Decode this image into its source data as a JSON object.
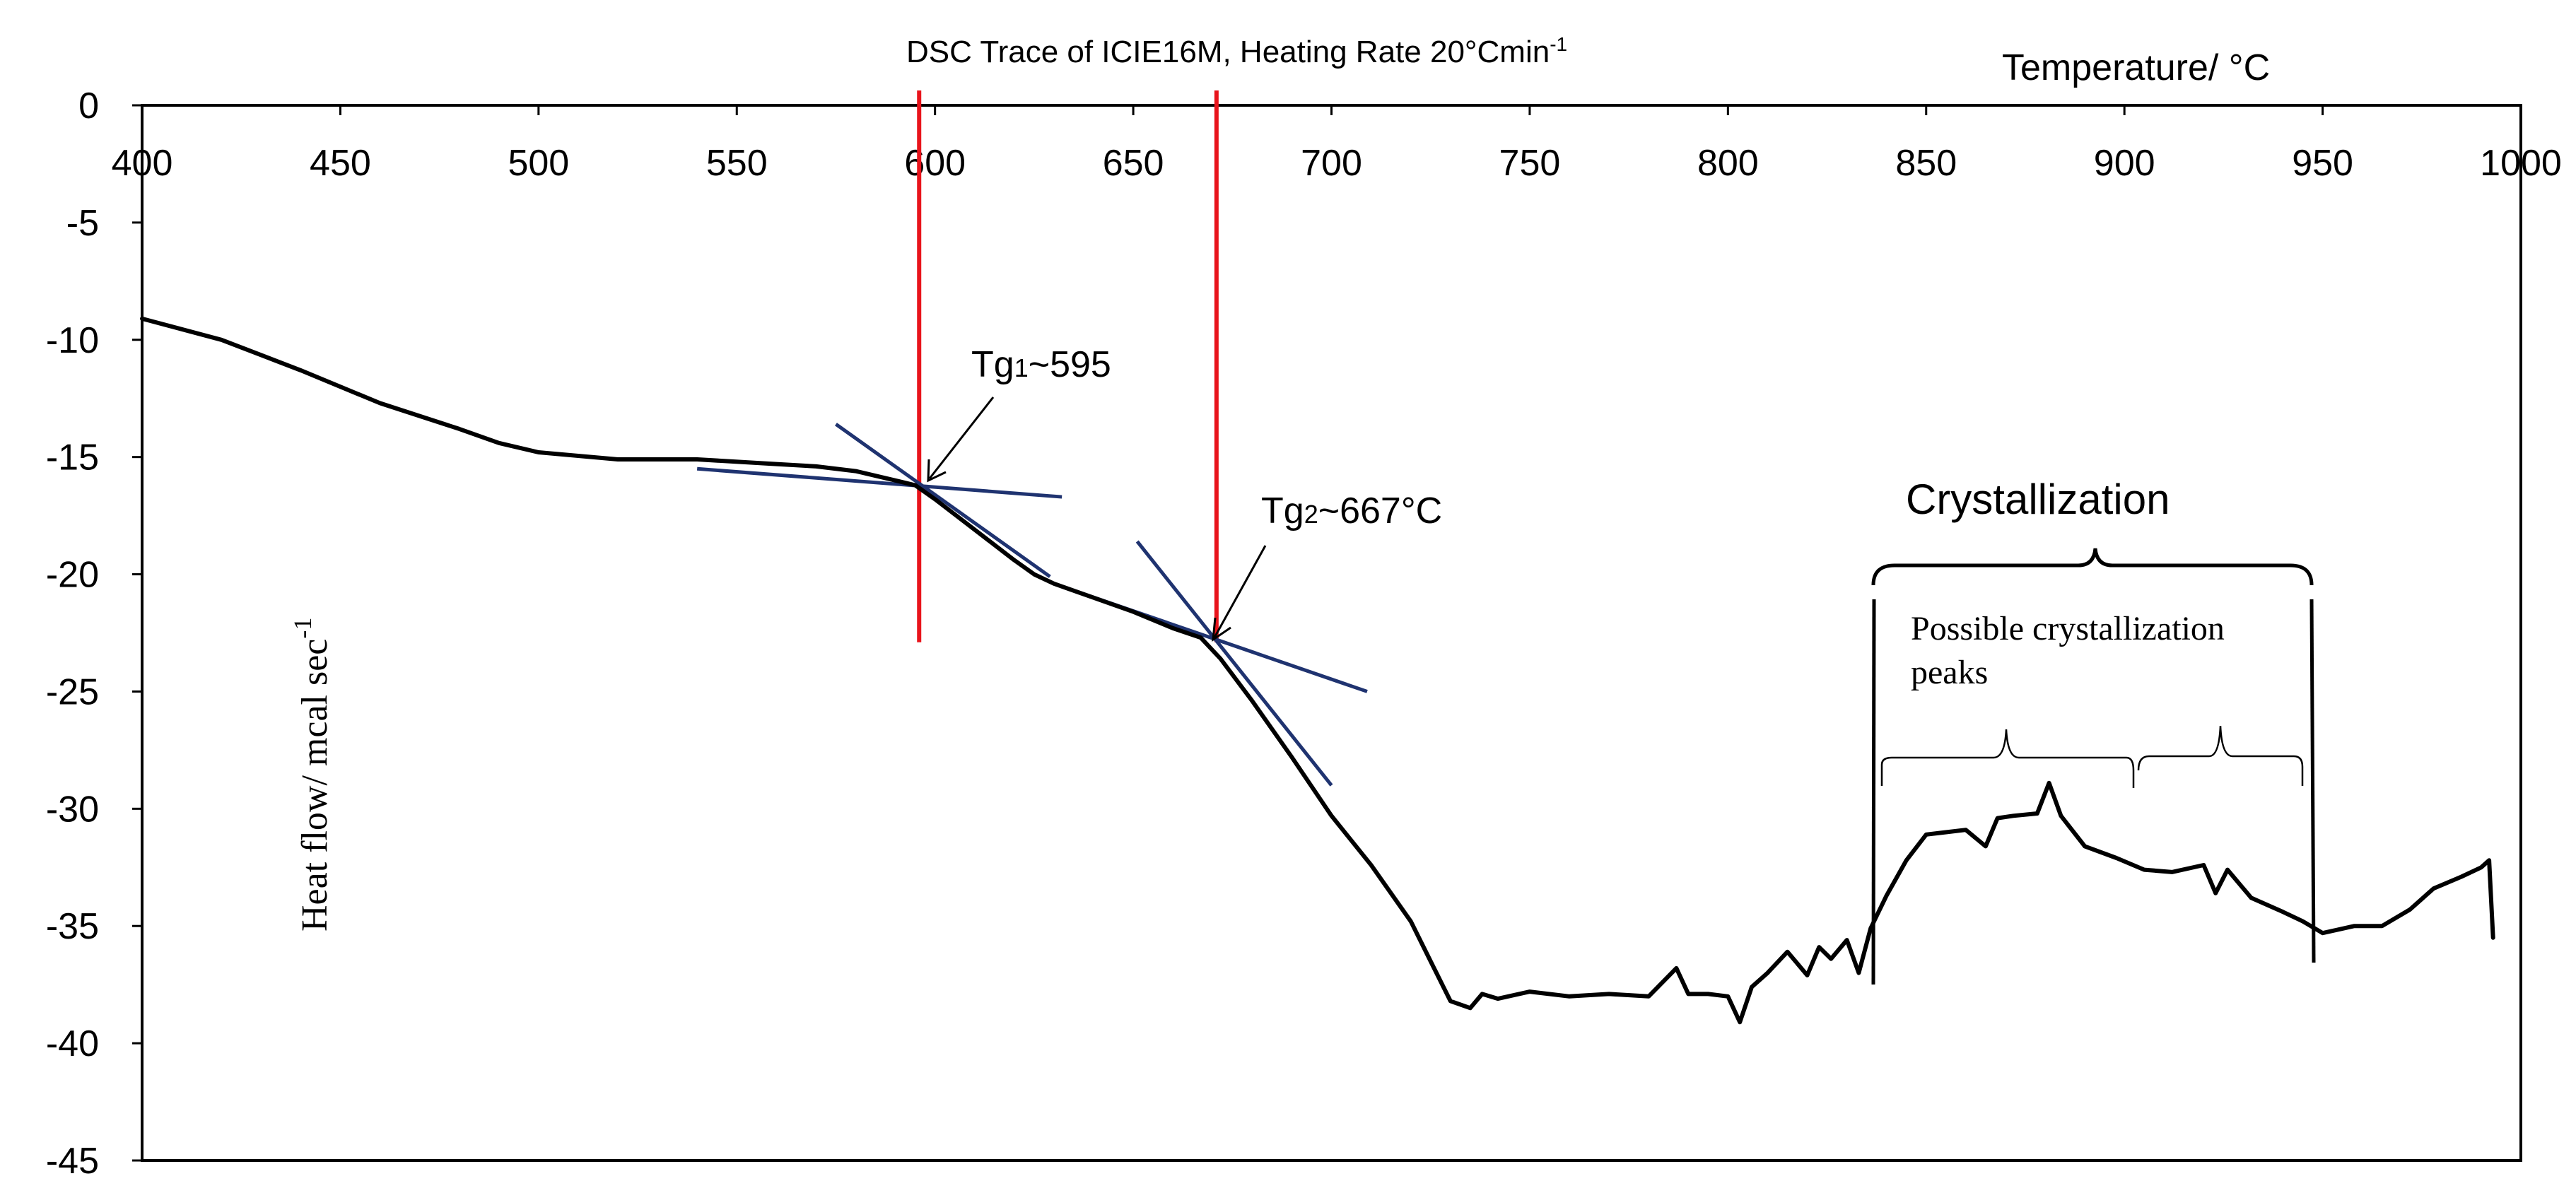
{
  "chart_data": {
    "type": "line",
    "title": "DSC Trace of ICIE16M, Heating Rate 20°Cmin",
    "title_superscript": "-1",
    "xlabel": "Temperature/ °C",
    "ylabel": "Heat flow/ mcal sec",
    "ylabel_superscript": "-1",
    "xlim": [
      400,
      1000
    ],
    "ylim": [
      -45,
      0
    ],
    "x_axis_position": "top",
    "x_ticks": [
      400,
      450,
      500,
      550,
      600,
      650,
      700,
      750,
      800,
      850,
      900,
      950,
      1000
    ],
    "y_ticks": [
      0,
      -5,
      -10,
      -15,
      -20,
      -25,
      -30,
      -35,
      -40,
      -45
    ],
    "grid": false,
    "series": [
      {
        "name": "DSC trace",
        "color": "#000000",
        "x": [
          400,
          420,
          440,
          460,
          480,
          490,
          500,
          520,
          540,
          560,
          570,
          580,
          590,
          595,
          600,
          610,
          620,
          625,
          630,
          640,
          650,
          660,
          667,
          672,
          680,
          690,
          700,
          710,
          720,
          725,
          730,
          735,
          738,
          742,
          750,
          760,
          770,
          780,
          787,
          790,
          795,
          800,
          803,
          806,
          810,
          815,
          820,
          823,
          826,
          830,
          833,
          836,
          840,
          845,
          850,
          855,
          860,
          865,
          868,
          872,
          878,
          881,
          884,
          890,
          898,
          905,
          912,
          920,
          923,
          926,
          932,
          940,
          945,
          950,
          958,
          965,
          972,
          978,
          985,
          990,
          992,
          993
        ],
        "y": [
          -9.1,
          -10.0,
          -11.3,
          -12.7,
          -13.8,
          -14.4,
          -14.8,
          -15.1,
          -15.1,
          -15.3,
          -15.4,
          -15.6,
          -16.0,
          -16.2,
          -16.8,
          -18.1,
          -19.4,
          -20.0,
          -20.4,
          -21.0,
          -21.6,
          -22.3,
          -22.7,
          -23.6,
          -25.4,
          -27.8,
          -30.3,
          -32.4,
          -34.8,
          -36.5,
          -38.2,
          -38.5,
          -37.9,
          -38.1,
          -37.8,
          -38.0,
          -37.9,
          -38.0,
          -36.8,
          -37.9,
          -37.9,
          -38.0,
          -39.1,
          -37.6,
          -37.0,
          -36.1,
          -37.1,
          -35.9,
          -36.4,
          -35.6,
          -37.0,
          -35.1,
          -33.7,
          -32.2,
          -31.1,
          -31.0,
          -30.9,
          -31.6,
          -30.4,
          -30.3,
          -30.2,
          -28.9,
          -30.3,
          -31.6,
          -32.1,
          -32.6,
          -32.7,
          -32.4,
          -33.6,
          -32.6,
          -33.8,
          -34.4,
          -34.8,
          -35.3,
          -35.0,
          -35.0,
          -34.3,
          -33.4,
          -32.9,
          -32.5,
          -32.2,
          -35.5
        ]
      }
    ],
    "vertical_markers": [
      {
        "label": "Tg1 marker",
        "x": 596,
        "color": "#e8141c"
      },
      {
        "label": "Tg2 marker",
        "x": 671,
        "color": "#e8141c"
      }
    ],
    "tangent_lines": [
      {
        "color": "#1f3370",
        "x1": 540,
        "y1": -15.5,
        "x2": 632,
        "y2": -16.7
      },
      {
        "color": "#1f3370",
        "x1": 575,
        "y1": -13.6,
        "x2": 629,
        "y2": -20.1
      },
      {
        "color": "#1f3370",
        "x1": 630,
        "y1": -20.4,
        "x2": 709,
        "y2": -25.0
      },
      {
        "color": "#1f3370",
        "x1": 651,
        "y1": -18.6,
        "x2": 700,
        "y2": -29.0
      }
    ],
    "annotations": [
      {
        "text": "Tg",
        "sub": "1",
        "tail": "~595",
        "x": 607,
        "y": -11.7,
        "arrow_to": [
          599.5,
          -16.1
        ],
        "arrow_from": [
          611,
          -13.0
        ]
      },
      {
        "text": "Tg",
        "sub": "2",
        "tail": "~667°C",
        "x": 677,
        "y": -17.5,
        "arrow_to": [
          670.5,
          -22.9
        ],
        "arrow_from": [
          683,
          -18.7
        ]
      },
      {
        "text": "Crystallization",
        "x": 890,
        "y": -16.2
      },
      {
        "text": "Possible crystallization",
        "x": 843,
        "y": -22.9
      },
      {
        "text": "peaks",
        "x": 843,
        "y": -24.9
      }
    ]
  }
}
